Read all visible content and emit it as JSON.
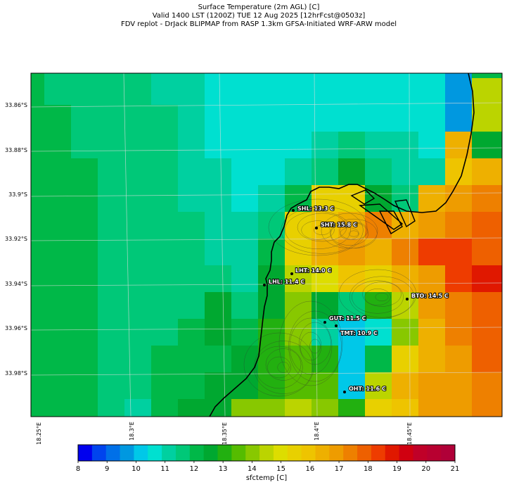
{
  "title": {
    "line1": "Surface Temperature (2m AGL) [C]",
    "line2": "Valid 1400 LST (1200Z) TUE 12 Aug 2025 [12hrFcst@0503z]",
    "line3": "FDV replot - DrJack BLIPMAP from RASP 1.3km GFSA-Initiated WRF-ARW model"
  },
  "axes": {
    "y_ticks": [
      "33.86°S",
      "33.88°S",
      "33.9°S",
      "33.92°S",
      "33.94°S",
      "33.96°S",
      "33.98°S"
    ],
    "x_ticks": [
      "18.25°E",
      "18.3°E",
      "18.35°E",
      "18.4°E",
      "18.45°E"
    ]
  },
  "stations": [
    {
      "label": "SHL: 13.3 C",
      "temp_c": 13.3
    },
    {
      "label": "SHT: 15.8 C",
      "temp_c": 15.8
    },
    {
      "label": "LHT: 14.0 C",
      "temp_c": 14.0
    },
    {
      "label": "LHL: 11.4 C",
      "temp_c": 11.4
    },
    {
      "label": "BTO: 14.5 C",
      "temp_c": 14.5
    },
    {
      "label": "GUT: 11.5 C",
      "temp_c": 11.5
    },
    {
      "label": "TMT: 10.9 C",
      "temp_c": 10.9
    },
    {
      "label": "OHT: 11.6 C",
      "temp_c": 11.6
    }
  ],
  "colorbar": {
    "label": "sfctemp [C]",
    "ticks": [
      "8",
      "9",
      "10",
      "11",
      "12",
      "13",
      "14",
      "15",
      "16",
      "17",
      "18",
      "19",
      "20",
      "21"
    ],
    "colors": [
      "#0000ee",
      "#0044ee",
      "#0070e8",
      "#0098e0",
      "#00c8e8",
      "#00e0d0",
      "#00d0a0",
      "#00c878",
      "#00b848",
      "#00a830",
      "#22b010",
      "#55bc00",
      "#88c800",
      "#bbd400",
      "#dddd00",
      "#e8d000",
      "#eec400",
      "#eeb000",
      "#ee9c00",
      "#ee8000",
      "#ee6000",
      "#ee3c00",
      "#e01800",
      "#d00010",
      "#c00028",
      "#b80030",
      "#b00038"
    ]
  },
  "colors": {
    "coastline": "#000000",
    "grid": "#dddddd",
    "contours": "#333333",
    "station_text": "#ffffff"
  }
}
